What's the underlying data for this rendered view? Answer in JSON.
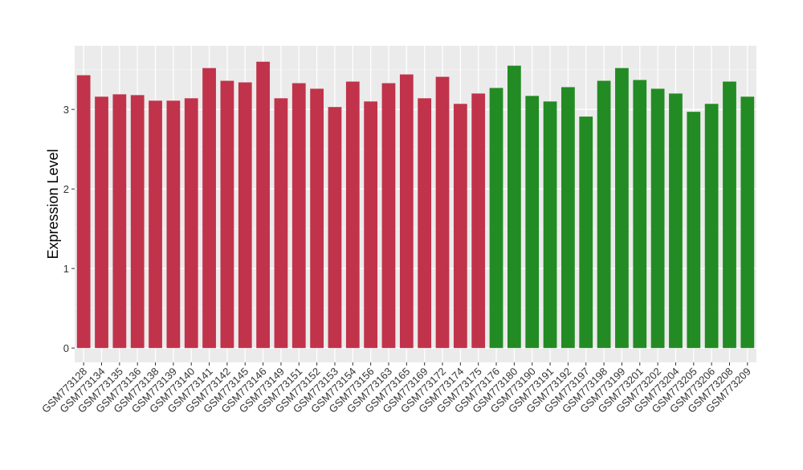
{
  "chart_data": {
    "type": "bar",
    "ylabel": "Expression Level",
    "xlabel": "",
    "ylim": [
      -0.18,
      3.8
    ],
    "yticks": [
      0,
      1,
      2,
      3
    ],
    "categories": [
      "GSM773128",
      "GSM773134",
      "GSM773135",
      "GSM773136",
      "GSM773138",
      "GSM773139",
      "GSM773140",
      "GSM773141",
      "GSM773142",
      "GSM773145",
      "GSM773146",
      "GSM773149",
      "GSM773151",
      "GSM773152",
      "GSM773153",
      "GSM773154",
      "GSM773156",
      "GSM773163",
      "GSM773165",
      "GSM773169",
      "GSM773172",
      "GSM773174",
      "GSM773175",
      "GSM773176",
      "GSM773180",
      "GSM773190",
      "GSM773191",
      "GSM773192",
      "GSM773197",
      "GSM773198",
      "GSM773199",
      "GSM773201",
      "GSM773202",
      "GSM773204",
      "GSM773205",
      "GSM773206",
      "GSM773208",
      "GSM773209"
    ],
    "values": [
      3.43,
      3.16,
      3.19,
      3.18,
      3.11,
      3.11,
      3.14,
      3.52,
      3.36,
      3.34,
      3.6,
      3.14,
      3.33,
      3.26,
      3.03,
      3.35,
      3.1,
      3.33,
      3.44,
      3.14,
      3.41,
      3.07,
      3.2,
      3.27,
      3.55,
      3.17,
      3.1,
      3.28,
      2.91,
      3.36,
      3.52,
      3.37,
      3.26,
      3.2,
      2.97,
      3.07,
      3.35,
      3.16
    ],
    "groups": [
      "a",
      "a",
      "a",
      "a",
      "a",
      "a",
      "a",
      "a",
      "a",
      "a",
      "a",
      "a",
      "a",
      "a",
      "a",
      "a",
      "a",
      "a",
      "a",
      "a",
      "a",
      "a",
      "a",
      "b",
      "b",
      "b",
      "b",
      "b",
      "b",
      "b",
      "b",
      "b",
      "b",
      "b",
      "b",
      "b",
      "b",
      "b"
    ],
    "colors": {
      "a": "#c0334b",
      "b": "#238b23"
    },
    "panel_bg": "#ebebeb",
    "grid": true,
    "legend": "none"
  }
}
